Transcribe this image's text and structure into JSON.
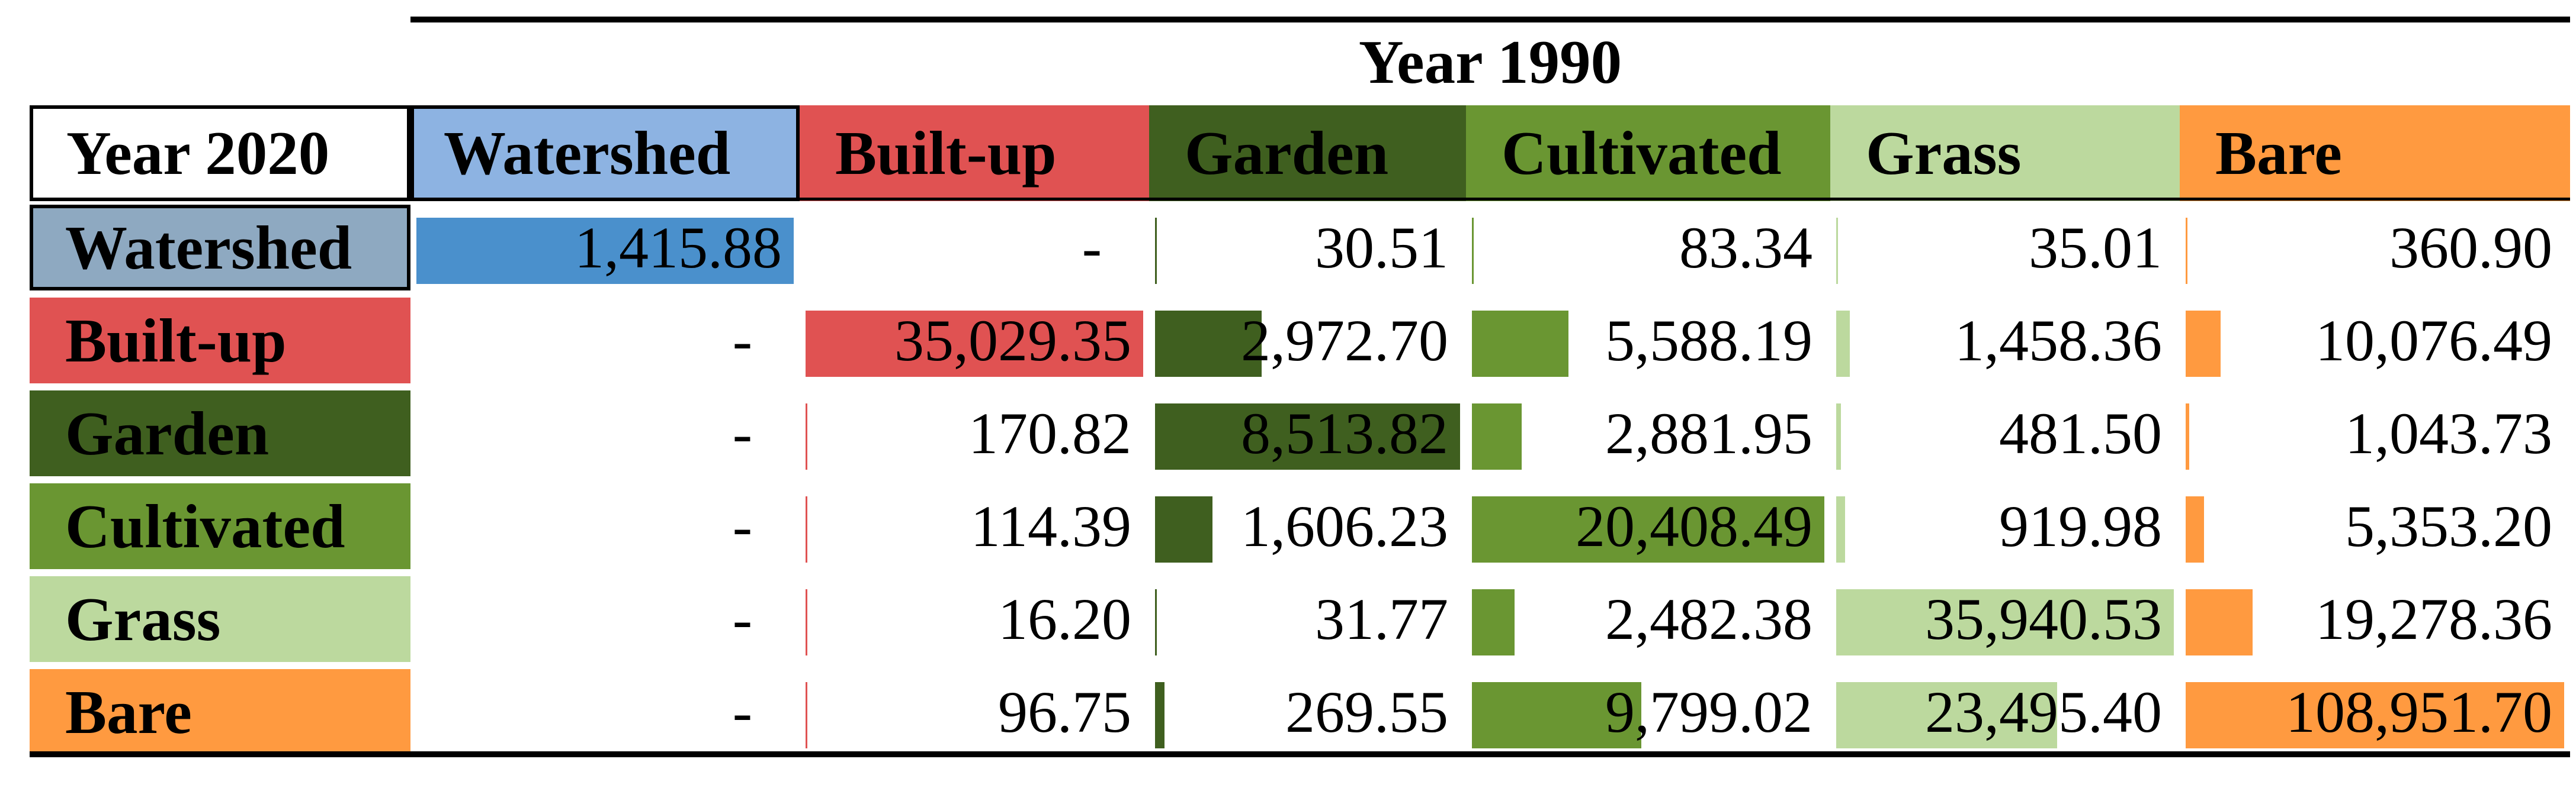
{
  "table": {
    "column_group_title": "Year 1990",
    "row_group_title": "Year 2020",
    "columns": [
      {
        "label": "Watershed",
        "color": "#8db3e2"
      },
      {
        "label": "Built-up",
        "color": "#e05252"
      },
      {
        "label": "Garden",
        "color": "#3f5f1f"
      },
      {
        "label": "Cultivated",
        "color": "#6a9632"
      },
      {
        "label": "Grass",
        "color": "#bcd99e"
      },
      {
        "label": "Bare",
        "color": "#ff9a40"
      }
    ],
    "rows": [
      {
        "label": "Watershed",
        "color": "#8ea9c1",
        "values": [
          "1,415.88",
          "-",
          "30.51",
          "83.34",
          "35.01",
          "360.90"
        ]
      },
      {
        "label": "Built-up",
        "color": "#e05252",
        "values": [
          "-",
          "35,029.35",
          "2,972.70",
          "5,588.19",
          "1,458.36",
          "10,076.49"
        ]
      },
      {
        "label": "Garden",
        "color": "#3f5f1f",
        "values": [
          "-",
          "170.82",
          "8,513.82",
          "2,881.95",
          "481.50",
          "1,043.73"
        ]
      },
      {
        "label": "Cultivated",
        "color": "#6a9632",
        "values": [
          "-",
          "114.39",
          "1,606.23",
          "20,408.49",
          "919.98",
          "5,353.20"
        ]
      },
      {
        "label": "Grass",
        "color": "#bcd99e",
        "values": [
          "-",
          "16.20",
          "31.77",
          "2,482.38",
          "35,940.53",
          "19,278.36"
        ]
      },
      {
        "label": "Bare",
        "color": "#ff9a40",
        "values": [
          "-",
          "96.75",
          "269.55",
          "9,799.02",
          "23,495.40",
          "108,951.70"
        ]
      }
    ],
    "bar_colors": [
      "#4a90cc",
      "#e05252",
      "#3f5f1f",
      "#6a9632",
      "#bcd99e",
      "#ff9a40"
    ]
  }
}
